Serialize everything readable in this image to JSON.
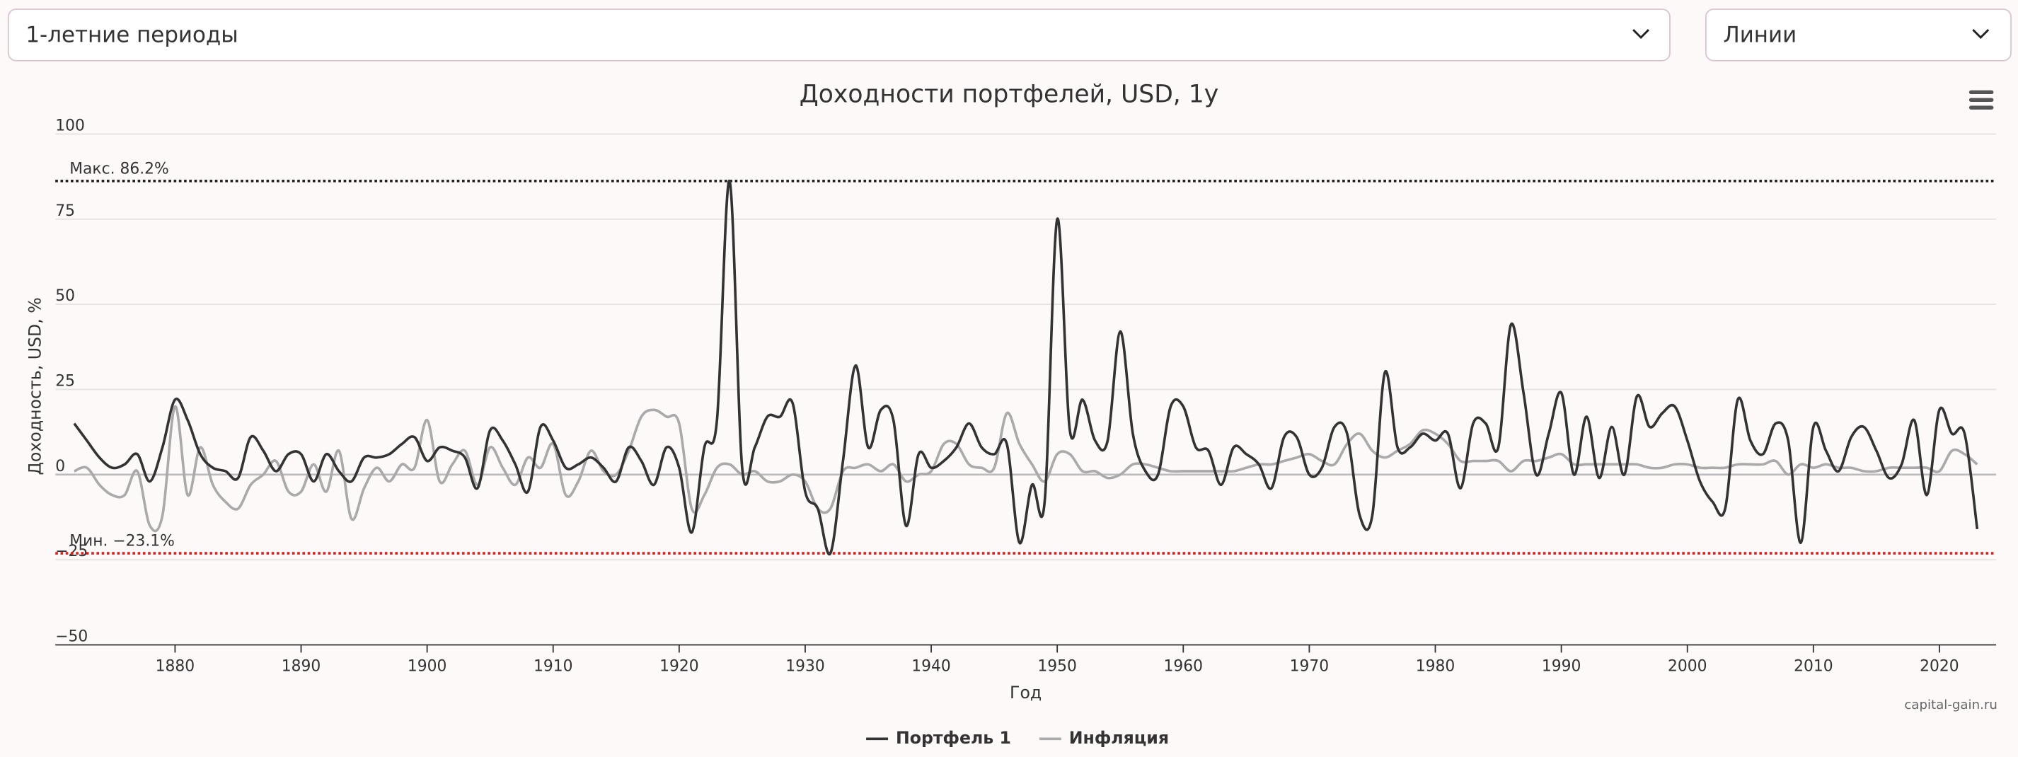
{
  "controls": {
    "period": "1-летние периоды",
    "view": "Линии"
  },
  "chart_data": {
    "type": "line",
    "title": "Доходности портфелей, USD, 1у",
    "y_label": "Доходность, USD, %",
    "x_label": "Год",
    "credits": "capital-gain.ru",
    "xlim": [
      1870.5,
      2024.5
    ],
    "xticks": [
      1880,
      1890,
      1900,
      1910,
      1920,
      1930,
      1940,
      1950,
      1960,
      1970,
      1980,
      1990,
      2000,
      2010,
      2020
    ],
    "ylim": [
      -50,
      100
    ],
    "yticks": [
      {
        "value": -50,
        "label": "−50"
      },
      {
        "value": -25,
        "label": "−25"
      },
      0,
      25,
      50,
      75,
      100
    ],
    "grid": true,
    "plot_lines": [
      {
        "value": 86.2,
        "label": "Макс. 86.2%",
        "color": "#222222"
      },
      {
        "value": -23.1,
        "label": "Мин. −23.1%",
        "color": "#d62020"
      }
    ],
    "x": [
      1872,
      1873,
      1874,
      1875,
      1876,
      1877,
      1878,
      1879,
      1880,
      1881,
      1882,
      1883,
      1884,
      1885,
      1886,
      1887,
      1888,
      1889,
      1890,
      1891,
      1892,
      1893,
      1894,
      1895,
      1896,
      1897,
      1898,
      1899,
      1900,
      1901,
      1902,
      1903,
      1904,
      1905,
      1906,
      1907,
      1908,
      1909,
      1910,
      1911,
      1912,
      1913,
      1914,
      1915,
      1916,
      1917,
      1918,
      1919,
      1920,
      1921,
      1922,
      1923,
      1924,
      1925,
      1926,
      1927,
      1928,
      1929,
      1930,
      1931,
      1932,
      1933,
      1934,
      1935,
      1936,
      1937,
      1938,
      1939,
      1940,
      1941,
      1942,
      1943,
      1944,
      1945,
      1946,
      1947,
      1948,
      1949,
      1950,
      1951,
      1952,
      1953,
      1954,
      1955,
      1956,
      1957,
      1958,
      1959,
      1960,
      1961,
      1962,
      1963,
      1964,
      1965,
      1966,
      1967,
      1968,
      1969,
      1970,
      1971,
      1972,
      1973,
      1974,
      1975,
      1976,
      1977,
      1978,
      1979,
      1980,
      1981,
      1982,
      1983,
      1984,
      1985,
      1986,
      1987,
      1988,
      1989,
      1990,
      1991,
      1992,
      1993,
      1994,
      1995,
      1996,
      1997,
      1998,
      1999,
      2000,
      2001,
      2002,
      2003,
      2004,
      2005,
      2006,
      2007,
      2008,
      2009,
      2010,
      2011,
      2012,
      2013,
      2014,
      2015,
      2016,
      2017,
      2018,
      2019,
      2020,
      2021,
      2022,
      2023
    ],
    "series": [
      {
        "name": "Портфель 1",
        "color": "#333333",
        "values": [
          15,
          10,
          5,
          2,
          3,
          6,
          -2,
          8,
          22,
          16,
          6,
          2,
          1,
          -1,
          11,
          7,
          1,
          6,
          6,
          -2,
          6,
          1,
          -2,
          5,
          5,
          6,
          9,
          11,
          4,
          8,
          7,
          5,
          -4,
          13,
          10,
          3,
          -5,
          14,
          10,
          2,
          3,
          5,
          2,
          -2,
          8,
          4,
          -3,
          8,
          2,
          -17,
          8,
          16,
          86.2,
          2,
          8,
          17,
          17,
          21,
          -5,
          -10,
          -23.1,
          4,
          32,
          8,
          19,
          16,
          -15,
          6,
          2,
          4,
          8,
          15,
          8,
          6,
          9,
          -20,
          -3,
          -8,
          75,
          13,
          22,
          10,
          10,
          42,
          12,
          1,
          0,
          20,
          20,
          8,
          7,
          -3,
          8,
          6,
          3,
          -4,
          11,
          11,
          0,
          2,
          14,
          12,
          -12,
          -12,
          30,
          8,
          8,
          12,
          10,
          12,
          -4,
          15,
          15,
          8,
          44,
          24,
          0,
          12,
          24,
          0,
          17,
          -1,
          14,
          0,
          23,
          14,
          18,
          20,
          10,
          -2,
          -8,
          -10,
          22,
          10,
          6,
          15,
          10,
          -20,
          14,
          7,
          1,
          11,
          14,
          7,
          -1,
          3,
          16,
          -6,
          19,
          12,
          12,
          -16
        ]
      },
      {
        "name": "Инфляция",
        "color": "#aaaaaa",
        "values": [
          1,
          2,
          -3,
          -6,
          -6,
          1,
          -15,
          -12,
          20,
          -6,
          8,
          -3,
          -8,
          -10,
          -3,
          0,
          4,
          -5,
          -5,
          3,
          -5,
          7,
          -13,
          -4,
          2,
          -2,
          3,
          2,
          16,
          -2,
          3,
          7,
          -3,
          8,
          2,
          -3,
          5,
          2,
          9,
          -6,
          -2,
          7,
          1,
          0,
          7,
          17,
          19,
          17,
          15,
          -10,
          -6,
          2,
          3,
          0,
          1,
          -2,
          -2,
          0,
          -2,
          -10,
          -10,
          1,
          2,
          3,
          1,
          3,
          -2,
          0,
          1,
          9,
          9,
          3,
          2,
          2,
          18,
          9,
          3,
          -2,
          6,
          6,
          1,
          1,
          -1,
          0,
          3,
          3,
          2,
          1,
          1,
          1,
          1,
          1,
          1,
          2,
          3,
          3,
          4,
          5,
          6,
          4,
          3,
          9,
          12,
          7,
          5,
          7,
          9,
          13,
          12,
          9,
          4,
          4,
          4,
          4,
          1,
          4,
          4,
          5,
          6,
          3,
          3,
          3,
          3,
          3,
          3,
          2,
          2,
          3,
          3,
          2,
          2,
          2,
          3,
          3,
          3,
          4,
          0,
          3,
          2,
          3,
          2,
          2,
          1,
          1,
          2,
          2,
          2,
          2,
          1,
          7,
          6,
          3
        ]
      }
    ]
  }
}
